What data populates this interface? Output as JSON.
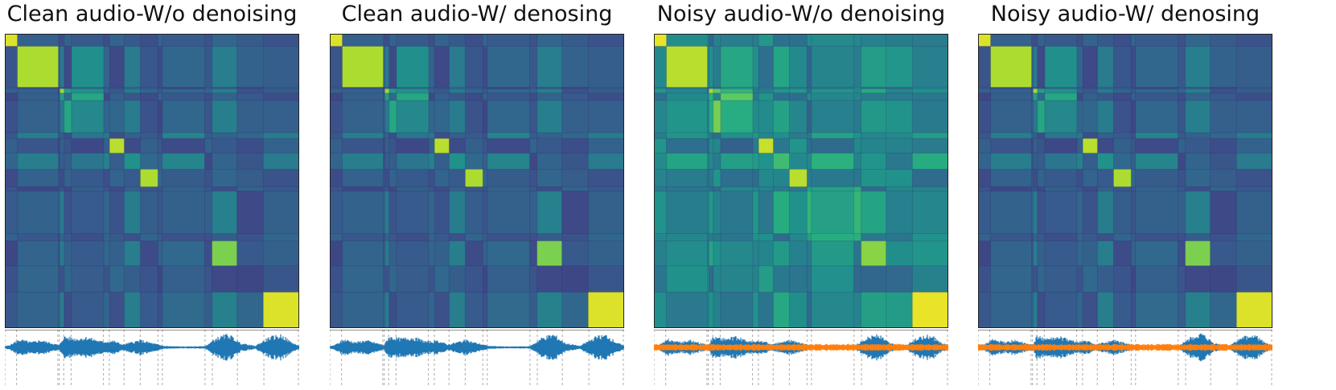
{
  "panels": [
    {
      "title": "Clean audio-W/o denoising",
      "noisy": false,
      "variant": "clean-raw"
    },
    {
      "title": "Clean audio-W/ denosing",
      "noisy": false,
      "variant": "clean-den"
    },
    {
      "title": "Noisy audio-W/o denoising",
      "noisy": true,
      "variant": "noisy-raw"
    },
    {
      "title": "Noisy audio-W/ denosing",
      "noisy": true,
      "variant": "noisy-den"
    }
  ],
  "chart_data": {
    "type": "heatmap",
    "colormap": "viridis",
    "segment_boundaries": [
      0,
      0.04,
      0.18,
      0.185,
      0.2,
      0.225,
      0.335,
      0.355,
      0.405,
      0.46,
      0.52,
      0.535,
      0.68,
      0.705,
      0.79,
      0.88,
      1.0
    ],
    "blocks": [
      {
        "segment": [
          0.0,
          0.04
        ],
        "similarity": 0.95
      },
      {
        "segment": [
          0.04,
          0.18
        ],
        "similarity": 0.88
      },
      {
        "segment": [
          0.185,
          0.335
        ],
        "similarity": 0.85
      },
      {
        "segment": [
          0.355,
          0.405
        ],
        "similarity": 0.9
      },
      {
        "segment": [
          0.46,
          0.52
        ],
        "similarity": 0.88
      },
      {
        "segment": [
          0.705,
          0.79
        ],
        "similarity": 0.8
      },
      {
        "segment": [
          0.88,
          1.0
        ],
        "similarity": 0.95
      }
    ],
    "waveform_colors": {
      "speech": "#1f77b4",
      "noise": "#ff7f0e"
    },
    "grid": false
  }
}
